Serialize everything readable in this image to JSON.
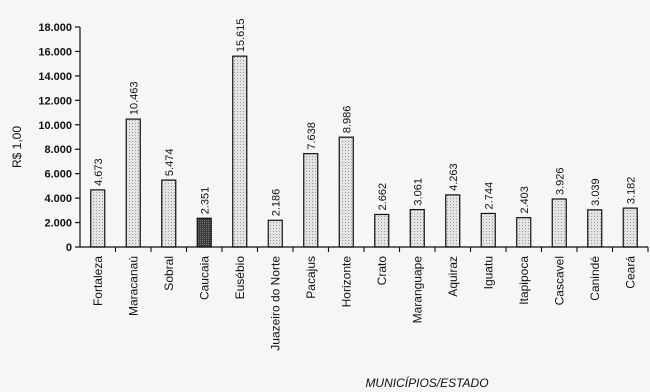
{
  "chart_data": {
    "type": "bar",
    "ylabel": "R$ 1,00",
    "xlabel": "MUNICÍPIOS/ESTADO",
    "ylim": [
      0,
      18000
    ],
    "yticks": [
      0,
      2000,
      4000,
      6000,
      8000,
      10000,
      12000,
      14000,
      16000,
      18000
    ],
    "ytick_labels": [
      "0",
      "2.000",
      "4.000",
      "6.000",
      "8.000",
      "10.000",
      "12.000",
      "14.000",
      "16.000",
      "18.000"
    ],
    "categories": [
      "Fortaleza",
      "Maracanaú",
      "Sobral",
      "Caucaia",
      "Eusébio",
      "Juazeiro do Norte",
      "Pacajus",
      "Horizonte",
      "Crato",
      "Maranguape",
      "Aquiraz",
      "Iguatu",
      "Itapipoca",
      "Cascavel",
      "Canindé",
      "Ceará"
    ],
    "values": [
      4673,
      10463,
      5474,
      2351,
      15615,
      2186,
      7638,
      8986,
      2662,
      3061,
      4263,
      2744,
      2403,
      3926,
      3039,
      3182
    ],
    "value_labels": [
      "4.673",
      "10.463",
      "5.474",
      "2.351",
      "15.615",
      "2.186",
      "7.638",
      "8.986",
      "2.662",
      "3.061",
      "4.263",
      "2.744",
      "2.403",
      "3.926",
      "3.039",
      "3.182"
    ],
    "highlight_category": "Caucaia",
    "colors": {
      "bar": "#dcdcdc",
      "highlight": "#333333",
      "stroke": "#111111"
    },
    "grid": false,
    "legend": "none"
  }
}
